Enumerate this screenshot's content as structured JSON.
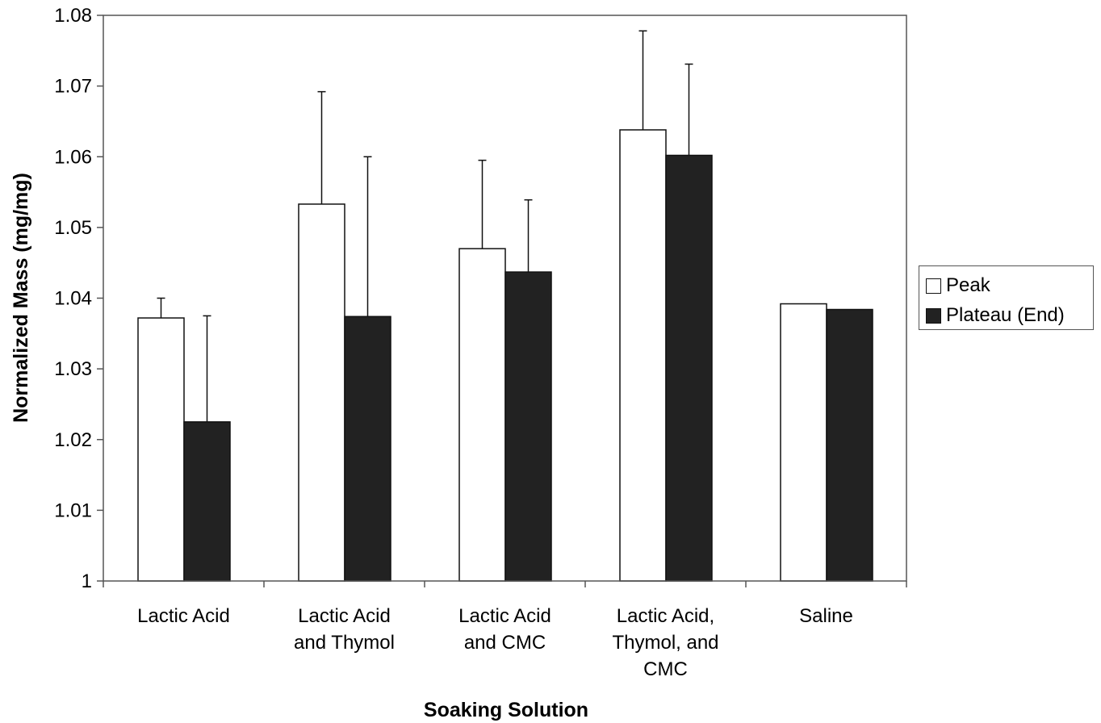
{
  "chart_data": {
    "type": "bar",
    "title": "",
    "xlabel": "Soaking Solution",
    "ylabel": "Normalized Mass (mg/mg)",
    "ylim": [
      1,
      1.08
    ],
    "yticks": [
      "1",
      "1.01",
      "1.02",
      "1.03",
      "1.04",
      "1.05",
      "1.06",
      "1.07",
      "1.08"
    ],
    "ytick_values": [
      1,
      1.01,
      1.02,
      1.03,
      1.04,
      1.05,
      1.06,
      1.07,
      1.08
    ],
    "categories": [
      [
        "Lactic Acid"
      ],
      [
        "Lactic Acid",
        "and Thymol"
      ],
      [
        "Lactic Acid",
        "and CMC"
      ],
      [
        "Lactic Acid,",
        "Thymol, and",
        "CMC"
      ],
      [
        "Saline"
      ]
    ],
    "grid": false,
    "legend_position": "right",
    "series": [
      {
        "name": "Peak",
        "color": "#ffffff",
        "values": [
          1.0372,
          1.0533,
          1.047,
          1.0638,
          1.0392
        ],
        "error_upper": [
          1.04,
          1.0692,
          1.0595,
          1.0778,
          null
        ]
      },
      {
        "name": "Plateau (End)",
        "color": "#222222",
        "values": [
          1.0225,
          1.0374,
          1.0437,
          1.0602,
          1.0384
        ],
        "error_upper": [
          1.0375,
          1.06,
          1.0539,
          1.0731,
          null
        ]
      }
    ]
  }
}
